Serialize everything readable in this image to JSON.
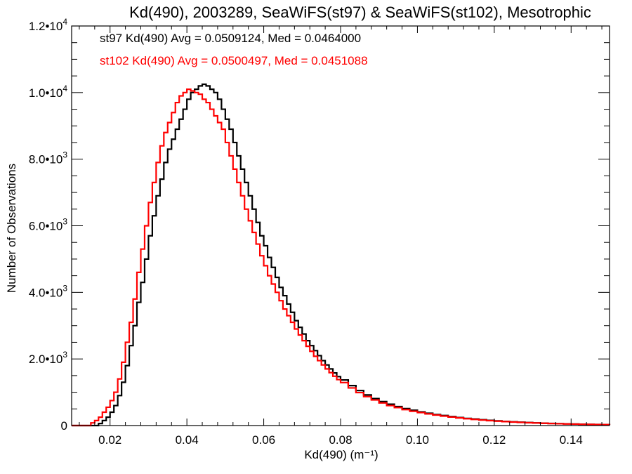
{
  "chart_data": {
    "type": "line",
    "title": "Kd(490), 2003289, SeaWiFS(st97) & SeaWiFS(st102), Mesotrophic",
    "xlabel": "Kd(490) (m⁻¹)",
    "ylabel": "Number of Observations",
    "xlim": [
      0.01,
      0.15
    ],
    "ylim": [
      0,
      12000
    ],
    "x_ticks": [
      0.02,
      0.04,
      0.06,
      0.08,
      0.1,
      0.12,
      0.14
    ],
    "x_tick_labels": [
      "0.02",
      "0.04",
      "0.06",
      "0.08",
      "0.10",
      "0.12",
      "0.14"
    ],
    "y_ticks": [
      {
        "value": 0,
        "mant": "0",
        "exp": ""
      },
      {
        "value": 2000,
        "mant": "2.0•10",
        "exp": "3"
      },
      {
        "value": 4000,
        "mant": "4.0•10",
        "exp": "3"
      },
      {
        "value": 6000,
        "mant": "6.0•10",
        "exp": "3"
      },
      {
        "value": 8000,
        "mant": "8.0•10",
        "exp": "3"
      },
      {
        "value": 10000,
        "mant": "1.0•10",
        "exp": "4"
      },
      {
        "value": 12000,
        "mant": "1.2•10",
        "exp": "4"
      }
    ],
    "grid": false,
    "annotations": [
      "st97 Kd(490) Avg = 0.0509124, Med = 0.0464000",
      "st102 Kd(490) Avg = 0.0500497, Med = 0.0451088"
    ],
    "series": [
      {
        "color": "#000000",
        "points": [
          [
            0.01,
            0
          ],
          [
            0.016,
            0
          ],
          [
            0.017,
            60
          ],
          [
            0.018,
            150
          ],
          [
            0.019,
            250
          ],
          [
            0.02,
            400
          ],
          [
            0.021,
            600
          ],
          [
            0.022,
            900
          ],
          [
            0.023,
            1300
          ],
          [
            0.024,
            1800
          ],
          [
            0.025,
            2400
          ],
          [
            0.026,
            3000
          ],
          [
            0.027,
            3700
          ],
          [
            0.028,
            4300
          ],
          [
            0.029,
            5000
          ],
          [
            0.03,
            5700
          ],
          [
            0.031,
            6300
          ],
          [
            0.032,
            6900
          ],
          [
            0.033,
            7400
          ],
          [
            0.034,
            7900
          ],
          [
            0.035,
            8300
          ],
          [
            0.036,
            8600
          ],
          [
            0.037,
            8900
          ],
          [
            0.038,
            9200
          ],
          [
            0.039,
            9500
          ],
          [
            0.04,
            9800
          ],
          [
            0.041,
            10000
          ],
          [
            0.042,
            10100
          ],
          [
            0.043,
            10200
          ],
          [
            0.044,
            10250
          ],
          [
            0.045,
            10200
          ],
          [
            0.046,
            10100
          ],
          [
            0.047,
            10000
          ],
          [
            0.048,
            9800
          ],
          [
            0.049,
            9500
          ],
          [
            0.05,
            9200
          ],
          [
            0.051,
            8900
          ],
          [
            0.052,
            8500
          ],
          [
            0.053,
            8100
          ],
          [
            0.054,
            7700
          ],
          [
            0.055,
            7300
          ],
          [
            0.056,
            6900
          ],
          [
            0.057,
            6500
          ],
          [
            0.058,
            6100
          ],
          [
            0.059,
            5700
          ],
          [
            0.06,
            5400
          ],
          [
            0.061,
            5050
          ],
          [
            0.062,
            4750
          ],
          [
            0.063,
            4450
          ],
          [
            0.064,
            4150
          ],
          [
            0.065,
            3900
          ],
          [
            0.066,
            3650
          ],
          [
            0.067,
            3400
          ],
          [
            0.068,
            3150
          ],
          [
            0.069,
            2950
          ],
          [
            0.07,
            2750
          ],
          [
            0.071,
            2550
          ],
          [
            0.072,
            2400
          ],
          [
            0.073,
            2250
          ],
          [
            0.074,
            2100
          ],
          [
            0.075,
            1950
          ],
          [
            0.076,
            1820
          ],
          [
            0.077,
            1700
          ],
          [
            0.078,
            1580
          ],
          [
            0.079,
            1470
          ],
          [
            0.08,
            1370
          ],
          [
            0.082,
            1200
          ],
          [
            0.084,
            1050
          ],
          [
            0.086,
            920
          ],
          [
            0.088,
            810
          ],
          [
            0.09,
            720
          ],
          [
            0.092,
            640
          ],
          [
            0.094,
            570
          ],
          [
            0.096,
            510
          ],
          [
            0.098,
            460
          ],
          [
            0.1,
            410
          ],
          [
            0.102,
            370
          ],
          [
            0.104,
            330
          ],
          [
            0.106,
            300
          ],
          [
            0.108,
            270
          ],
          [
            0.11,
            240
          ],
          [
            0.112,
            215
          ],
          [
            0.114,
            195
          ],
          [
            0.116,
            175
          ],
          [
            0.118,
            155
          ],
          [
            0.12,
            140
          ],
          [
            0.122,
            125
          ],
          [
            0.124,
            112
          ],
          [
            0.126,
            100
          ],
          [
            0.128,
            90
          ],
          [
            0.13,
            80
          ],
          [
            0.132,
            72
          ],
          [
            0.134,
            64
          ],
          [
            0.136,
            57
          ],
          [
            0.138,
            51
          ],
          [
            0.14,
            45
          ],
          [
            0.142,
            40
          ],
          [
            0.144,
            35
          ],
          [
            0.146,
            31
          ],
          [
            0.148,
            27
          ],
          [
            0.15,
            24
          ]
        ]
      },
      {
        "color": "#ff0000",
        "points": [
          [
            0.01,
            0
          ],
          [
            0.014,
            0
          ],
          [
            0.015,
            80
          ],
          [
            0.016,
            150
          ],
          [
            0.017,
            250
          ],
          [
            0.018,
            400
          ],
          [
            0.019,
            550
          ],
          [
            0.02,
            750
          ],
          [
            0.021,
            1000
          ],
          [
            0.022,
            1400
          ],
          [
            0.023,
            1900
          ],
          [
            0.024,
            2500
          ],
          [
            0.025,
            3100
          ],
          [
            0.026,
            3800
          ],
          [
            0.027,
            4600
          ],
          [
            0.028,
            5300
          ],
          [
            0.029,
            6000
          ],
          [
            0.03,
            6700
          ],
          [
            0.031,
            7300
          ],
          [
            0.032,
            7900
          ],
          [
            0.033,
            8400
          ],
          [
            0.034,
            8800
          ],
          [
            0.035,
            9100
          ],
          [
            0.036,
            9400
          ],
          [
            0.037,
            9700
          ],
          [
            0.038,
            9900
          ],
          [
            0.039,
            10000
          ],
          [
            0.04,
            10100
          ],
          [
            0.041,
            10050
          ],
          [
            0.042,
            10000
          ],
          [
            0.043,
            9950
          ],
          [
            0.044,
            9800
          ],
          [
            0.045,
            9700
          ],
          [
            0.046,
            9500
          ],
          [
            0.047,
            9300
          ],
          [
            0.048,
            9100
          ],
          [
            0.049,
            8900
          ],
          [
            0.05,
            8500
          ],
          [
            0.051,
            8100
          ],
          [
            0.052,
            7700
          ],
          [
            0.053,
            7300
          ],
          [
            0.054,
            6900
          ],
          [
            0.055,
            6500
          ],
          [
            0.056,
            6150
          ],
          [
            0.057,
            5800
          ],
          [
            0.058,
            5450
          ],
          [
            0.059,
            5100
          ],
          [
            0.06,
            4800
          ],
          [
            0.061,
            4500
          ],
          [
            0.062,
            4250
          ],
          [
            0.063,
            4000
          ],
          [
            0.064,
            3750
          ],
          [
            0.065,
            3500
          ],
          [
            0.066,
            3300
          ],
          [
            0.067,
            3100
          ],
          [
            0.068,
            2900
          ],
          [
            0.069,
            2720
          ],
          [
            0.07,
            2550
          ],
          [
            0.071,
            2380
          ],
          [
            0.072,
            2230
          ],
          [
            0.073,
            2080
          ],
          [
            0.074,
            1950
          ],
          [
            0.075,
            1820
          ],
          [
            0.076,
            1700
          ],
          [
            0.077,
            1590
          ],
          [
            0.078,
            1480
          ],
          [
            0.079,
            1380
          ],
          [
            0.08,
            1290
          ],
          [
            0.082,
            1130
          ],
          [
            0.084,
            990
          ],
          [
            0.086,
            870
          ],
          [
            0.088,
            770
          ],
          [
            0.09,
            680
          ],
          [
            0.092,
            600
          ],
          [
            0.094,
            540
          ],
          [
            0.096,
            480
          ],
          [
            0.098,
            430
          ],
          [
            0.1,
            390
          ],
          [
            0.102,
            350
          ],
          [
            0.104,
            315
          ],
          [
            0.106,
            285
          ],
          [
            0.108,
            255
          ],
          [
            0.11,
            230
          ],
          [
            0.112,
            205
          ],
          [
            0.114,
            185
          ],
          [
            0.116,
            165
          ],
          [
            0.118,
            148
          ],
          [
            0.12,
            132
          ],
          [
            0.122,
            118
          ],
          [
            0.124,
            106
          ],
          [
            0.126,
            95
          ],
          [
            0.128,
            85
          ],
          [
            0.13,
            76
          ],
          [
            0.132,
            68
          ],
          [
            0.134,
            61
          ],
          [
            0.136,
            54
          ],
          [
            0.138,
            48
          ],
          [
            0.14,
            43
          ],
          [
            0.142,
            38
          ],
          [
            0.144,
            34
          ],
          [
            0.146,
            30
          ],
          [
            0.148,
            26
          ],
          [
            0.15,
            23
          ]
        ]
      }
    ]
  }
}
